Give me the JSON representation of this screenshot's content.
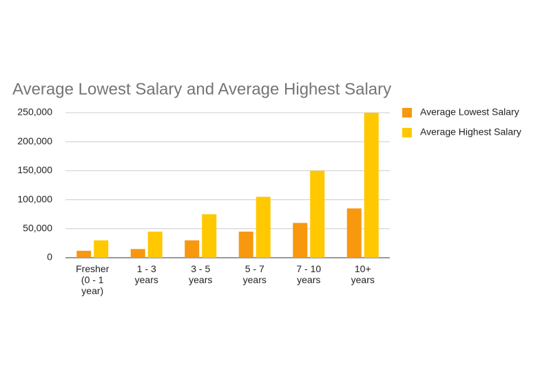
{
  "chart_data": {
    "type": "bar",
    "title": "Average Lowest Salary and Average Highest Salary",
    "categories": [
      "Fresher (0 - 1 year)",
      "1 - 3 years",
      "3 - 5 years",
      "5 - 7 years",
      "7 - 10 years",
      "10+ years"
    ],
    "series": [
      {
        "name": "Average Lowest Salary",
        "color": "#f7980f",
        "values": [
          12000,
          15000,
          30000,
          45000,
          60000,
          85000
        ]
      },
      {
        "name": "Average Highest Salary",
        "color": "#ffc800",
        "values": [
          30000,
          45000,
          75000,
          105000,
          150000,
          250000
        ]
      }
    ],
    "ylim": [
      0,
      250000
    ],
    "yticks": [
      0,
      {
        "value": 50000,
        "label": "50,000"
      },
      {
        "value": 100000,
        "label": "100,000"
      },
      {
        "value": 150000,
        "label": "150,000"
      },
      {
        "value": 200000,
        "label": "200,000"
      },
      {
        "value": 250000,
        "label": "250,000"
      }
    ],
    "grid": true,
    "legend": "right"
  }
}
